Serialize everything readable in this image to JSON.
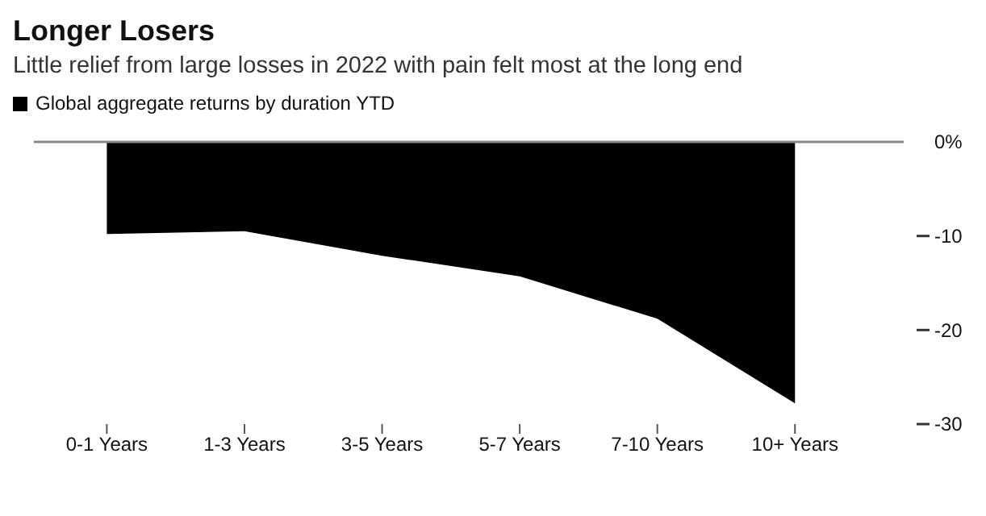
{
  "chart_data": {
    "type": "area",
    "title": "Longer Losers",
    "subtitle": "Little relief from large losses in 2022 with pain felt most at the long end",
    "categories": [
      "0-1 Years",
      "1-3 Years",
      "3-5 Years",
      "5-7 Years",
      "7-10 Years",
      "10+ Years"
    ],
    "series": [
      {
        "name": "Global aggregate returns by duration YTD",
        "color": "#000000",
        "values": [
          -9.8,
          -9.5,
          -12.1,
          -14.3,
          -18.8,
          -27.8
        ]
      }
    ],
    "ylim": [
      -30,
      0
    ],
    "yticks": [
      {
        "value": 0,
        "label": "0%"
      },
      -10,
      -20,
      -30
    ],
    "legend": "top left",
    "grid": false
  }
}
